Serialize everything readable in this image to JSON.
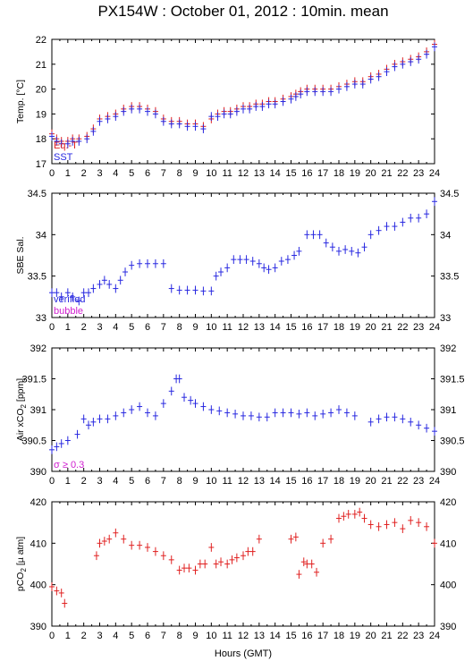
{
  "title": "PX154W : October 01, 2012 : 10min. mean",
  "xlabel": "Hours (GMT)",
  "colors": {
    "red": "#e02020",
    "blue": "#2828e0",
    "magenta": "#d020d0",
    "axis": "#000000"
  },
  "chart_data": [
    {
      "type": "scatter",
      "ylabel": "Temp. [°C]",
      "xlim": [
        0,
        24
      ],
      "ylim": [
        17,
        22
      ],
      "xticks": [
        "0",
        "1",
        "2",
        "3",
        "4",
        "5",
        "6",
        "7",
        "8",
        "9",
        "10",
        "11",
        "12",
        "13",
        "14",
        "15",
        "16",
        "17",
        "18",
        "19",
        "20",
        "21",
        "22",
        "23",
        "24"
      ],
      "yticks": [
        "17",
        "18",
        "19",
        "20",
        "21",
        "22"
      ],
      "legend": [
        {
          "label": "Eq.-T",
          "color": "#e02020"
        },
        {
          "label": "SST",
          "color": "#2828e0"
        }
      ],
      "series": [
        {
          "name": "Eq.-T",
          "color": "#e02020",
          "x": [
            0.0,
            0.3,
            0.6,
            1.0,
            1.3,
            1.7,
            2.2,
            2.6,
            3.0,
            3.5,
            4.0,
            4.5,
            5.0,
            5.5,
            6.0,
            6.5,
            7.0,
            7.5,
            8.0,
            8.5,
            9.0,
            9.5,
            10.0,
            10.4,
            10.8,
            11.2,
            11.6,
            12.0,
            12.4,
            12.8,
            13.2,
            13.6,
            14.0,
            14.5,
            15.0,
            15.3,
            15.6,
            16.0,
            16.5,
            17.0,
            17.5,
            18.0,
            18.5,
            19.0,
            19.5,
            20.0,
            20.5,
            21.0,
            21.5,
            22.0,
            22.5,
            23.0,
            23.5,
            24.0
          ],
          "y": [
            18.2,
            18.0,
            17.9,
            17.9,
            18.0,
            18.0,
            18.1,
            18.4,
            18.8,
            18.9,
            19.0,
            19.2,
            19.3,
            19.3,
            19.2,
            19.1,
            18.8,
            18.7,
            18.7,
            18.6,
            18.6,
            18.5,
            18.8,
            19.0,
            19.1,
            19.1,
            19.2,
            19.3,
            19.3,
            19.4,
            19.4,
            19.5,
            19.5,
            19.6,
            19.7,
            19.8,
            19.9,
            20.0,
            20.0,
            20.0,
            20.0,
            20.1,
            20.2,
            20.3,
            20.3,
            20.5,
            20.6,
            20.8,
            21.0,
            21.1,
            21.2,
            21.3,
            21.5,
            21.8
          ]
        },
        {
          "name": "SST",
          "color": "#2828e0",
          "x": [
            0.0,
            0.3,
            0.6,
            1.0,
            1.3,
            1.7,
            2.2,
            2.6,
            3.0,
            3.5,
            4.0,
            4.5,
            5.0,
            5.5,
            6.0,
            6.5,
            7.0,
            7.5,
            8.0,
            8.5,
            9.0,
            9.5,
            10.0,
            10.4,
            10.8,
            11.2,
            11.6,
            12.0,
            12.4,
            12.8,
            13.2,
            13.6,
            14.0,
            14.5,
            15.0,
            15.3,
            15.6,
            16.0,
            16.5,
            17.0,
            17.5,
            18.0,
            18.5,
            19.0,
            19.5,
            20.0,
            20.5,
            21.0,
            21.5,
            22.0,
            22.5,
            23.0,
            23.5,
            24.0
          ],
          "y": [
            18.1,
            17.9,
            17.8,
            17.8,
            17.9,
            17.9,
            18.0,
            18.3,
            18.7,
            18.8,
            18.9,
            19.1,
            19.2,
            19.2,
            19.1,
            19.0,
            18.7,
            18.6,
            18.6,
            18.5,
            18.5,
            18.4,
            18.9,
            18.9,
            19.0,
            19.0,
            19.1,
            19.2,
            19.2,
            19.3,
            19.3,
            19.4,
            19.4,
            19.5,
            19.6,
            19.7,
            19.8,
            19.9,
            19.9,
            19.9,
            19.9,
            20.0,
            20.1,
            20.2,
            20.2,
            20.4,
            20.5,
            20.7,
            20.9,
            21.0,
            21.1,
            21.2,
            21.4,
            21.7
          ]
        }
      ]
    },
    {
      "type": "scatter",
      "ylabel": "SBE Sal.",
      "xlim": [
        0,
        24
      ],
      "ylim": [
        33,
        34.5
      ],
      "xticks": [
        "0",
        "1",
        "2",
        "3",
        "4",
        "5",
        "6",
        "7",
        "8",
        "9",
        "10",
        "11",
        "12",
        "13",
        "14",
        "15",
        "16",
        "17",
        "18",
        "19",
        "20",
        "21",
        "22",
        "23",
        "24"
      ],
      "yticks": [
        "33",
        "33.5",
        "34",
        "34.5"
      ],
      "legend": [
        {
          "label": "verified",
          "color": "#2828e0"
        },
        {
          "label": "bubble",
          "color": "#d020d0"
        }
      ],
      "series": [
        {
          "name": "verified",
          "color": "#2828e0",
          "x": [
            0.0,
            0.3,
            0.6,
            1.0,
            1.3,
            1.7,
            2.0,
            2.3,
            2.6,
            3.0,
            3.3,
            3.6,
            4.0,
            4.3,
            4.6,
            5.0,
            5.5,
            6.0,
            6.5,
            7.0,
            7.5,
            8.0,
            8.5,
            9.0,
            9.5,
            10.0,
            10.3,
            10.6,
            11.0,
            11.4,
            11.8,
            12.2,
            12.6,
            13.0,
            13.3,
            13.6,
            14.0,
            14.4,
            14.8,
            15.2,
            15.5,
            16.0,
            16.4,
            16.8,
            17.2,
            17.6,
            18.0,
            18.4,
            18.8,
            19.2,
            19.6,
            20.0,
            20.5,
            21.0,
            21.5,
            22.0,
            22.5,
            23.0,
            23.5,
            24.0
          ],
          "y": [
            33.3,
            33.3,
            33.25,
            33.3,
            33.25,
            33.2,
            33.3,
            33.3,
            33.35,
            33.4,
            33.45,
            33.4,
            33.35,
            33.45,
            33.55,
            33.63,
            33.65,
            33.65,
            33.65,
            33.65,
            33.35,
            33.33,
            33.33,
            33.33,
            33.32,
            33.32,
            33.5,
            33.55,
            33.6,
            33.7,
            33.7,
            33.7,
            33.68,
            33.65,
            33.6,
            33.58,
            33.6,
            33.68,
            33.7,
            33.75,
            33.8,
            34.0,
            34.0,
            34.0,
            33.9,
            33.85,
            33.8,
            33.82,
            33.8,
            33.78,
            33.85,
            34.0,
            34.05,
            34.1,
            34.1,
            34.15,
            34.2,
            34.2,
            34.25,
            34.4
          ]
        }
      ]
    },
    {
      "type": "scatter",
      "ylabel": "Air xCO2 [ppm]",
      "xlim": [
        0,
        24
      ],
      "ylim": [
        390,
        392
      ],
      "xticks": [
        "0",
        "1",
        "2",
        "3",
        "4",
        "5",
        "6",
        "7",
        "8",
        "9",
        "10",
        "11",
        "12",
        "13",
        "14",
        "15",
        "16",
        "17",
        "18",
        "19",
        "20",
        "21",
        "22",
        "23",
        "24"
      ],
      "yticks": [
        "390",
        "390.5",
        "391",
        "391.5",
        "392"
      ],
      "legend": [
        {
          "label": "σ ≥ 0.3",
          "color": "#d020d0"
        }
      ],
      "series": [
        {
          "name": "",
          "color": "#2828e0",
          "x": [
            0.0,
            0.3,
            0.6,
            1.0,
            1.6,
            2.0,
            2.3,
            2.6,
            3.0,
            3.5,
            4.0,
            4.5,
            5.0,
            5.5,
            6.0,
            6.5,
            7.0,
            7.5,
            7.8,
            8.0,
            8.3,
            8.7,
            9.0,
            9.5,
            10.0,
            10.5,
            11.0,
            11.5,
            12.0,
            12.5,
            13.0,
            13.5,
            14.0,
            14.5,
            15.0,
            15.5,
            16.0,
            16.5,
            17.0,
            17.5,
            18.0,
            18.5,
            19.0,
            20.0,
            20.5,
            21.0,
            21.5,
            22.0,
            22.5,
            23.0,
            23.5,
            24.0
          ],
          "y": [
            390.35,
            390.4,
            390.45,
            390.5,
            390.6,
            390.85,
            390.75,
            390.8,
            390.85,
            390.85,
            390.9,
            390.95,
            391.0,
            391.05,
            390.95,
            390.9,
            391.1,
            391.3,
            391.5,
            391.5,
            391.2,
            391.15,
            391.1,
            391.05,
            391.0,
            390.98,
            390.95,
            390.93,
            390.9,
            390.9,
            390.88,
            390.88,
            390.95,
            390.95,
            390.95,
            390.93,
            390.95,
            390.9,
            390.93,
            390.95,
            391.0,
            390.95,
            390.9,
            390.8,
            390.85,
            390.88,
            390.88,
            390.85,
            390.8,
            390.75,
            390.7,
            390.65
          ]
        }
      ]
    },
    {
      "type": "scatter",
      "ylabel": "pCO2 [µ atm]",
      "xlim": [
        0,
        24
      ],
      "ylim": [
        390,
        420
      ],
      "xticks": [
        "0",
        "1",
        "2",
        "3",
        "4",
        "5",
        "6",
        "7",
        "8",
        "9",
        "10",
        "11",
        "12",
        "13",
        "14",
        "15",
        "16",
        "17",
        "18",
        "19",
        "20",
        "21",
        "22",
        "23",
        "24"
      ],
      "yticks": [
        "390",
        "400",
        "410",
        "420"
      ],
      "series": [
        {
          "name": "",
          "color": "#e02020",
          "x": [
            0.0,
            0.3,
            0.6,
            0.8,
            2.8,
            3.0,
            3.3,
            3.6,
            4.0,
            4.5,
            5.0,
            5.5,
            6.0,
            6.5,
            7.0,
            7.5,
            8.0,
            8.3,
            8.6,
            9.0,
            9.3,
            9.6,
            10.0,
            10.3,
            10.6,
            11.0,
            11.3,
            11.6,
            12.0,
            12.3,
            12.6,
            13.0,
            15.0,
            15.3,
            15.5,
            15.8,
            16.0,
            16.3,
            16.6,
            17.0,
            17.5,
            18.0,
            18.3,
            18.6,
            19.0,
            19.3,
            19.6,
            20.0,
            20.5,
            21.0,
            21.5,
            22.0,
            22.5,
            23.0,
            23.5,
            24.0
          ],
          "y": [
            399.5,
            398.5,
            398.0,
            395.5,
            407.0,
            410.0,
            410.5,
            411.0,
            412.5,
            411.0,
            409.5,
            409.5,
            409.0,
            408.0,
            407.0,
            406.0,
            403.5,
            404.0,
            404.0,
            403.5,
            405.0,
            405.0,
            409.0,
            405.0,
            405.5,
            405.0,
            406.0,
            406.5,
            407.0,
            408.0,
            408.0,
            411.0,
            411.0,
            411.5,
            402.5,
            405.5,
            405.0,
            405.0,
            403.0,
            410.0,
            411.0,
            416.0,
            416.5,
            417.0,
            417.0,
            417.5,
            416.0,
            414.5,
            414.0,
            414.5,
            415.0,
            413.5,
            415.5,
            415.0,
            414.0,
            410.0
          ]
        }
      ]
    }
  ]
}
